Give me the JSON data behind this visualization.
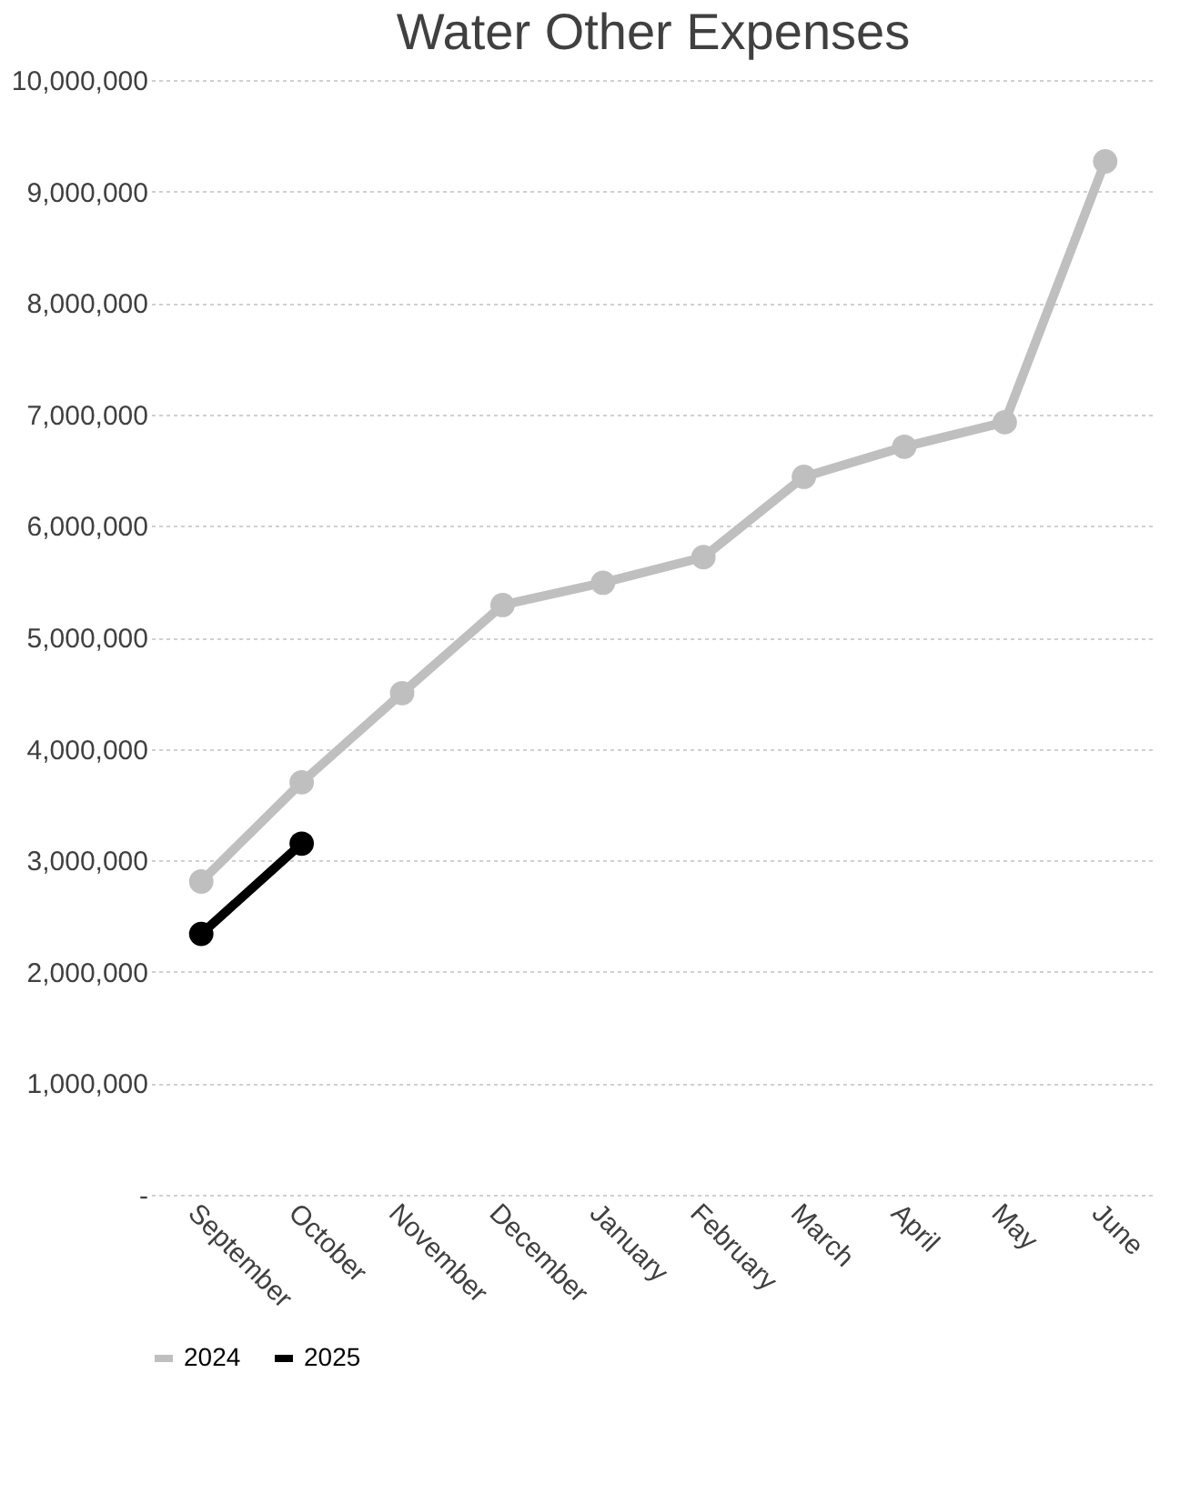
{
  "chart_data": {
    "type": "line",
    "title": "Water Other Expenses",
    "categories": [
      "September",
      "October",
      "November",
      "December",
      "January",
      "February",
      "March",
      "April",
      "May",
      "June"
    ],
    "series": [
      {
        "name": "2024",
        "color": "#bfbfbf",
        "values": [
          2810000,
          3700000,
          4500000,
          5290000,
          5490000,
          5720000,
          6440000,
          6710000,
          6930000,
          9270000
        ]
      },
      {
        "name": "2025",
        "color": "#000000",
        "values": [
          2340000,
          3150000,
          null,
          null,
          null,
          null,
          null,
          null,
          null,
          null
        ]
      }
    ],
    "ylim": [
      0,
      10000000
    ],
    "yticks": [
      {
        "value": 0,
        "label": "-"
      },
      {
        "value": 1000000,
        "label": "1,000,000"
      },
      {
        "value": 2000000,
        "label": "2,000,000"
      },
      {
        "value": 3000000,
        "label": "3,000,000"
      },
      {
        "value": 4000000,
        "label": "4,000,000"
      },
      {
        "value": 5000000,
        "label": "5,000,000"
      },
      {
        "value": 6000000,
        "label": "6,000,000"
      },
      {
        "value": 7000000,
        "label": "7,000,000"
      },
      {
        "value": 8000000,
        "label": "8,000,000"
      },
      {
        "value": 9000000,
        "label": "9,000,000"
      },
      {
        "value": 10000000,
        "label": "10,000,000"
      }
    ],
    "grid": "y",
    "legend": "bottom",
    "marker": "circle",
    "line_style": "solid"
  }
}
